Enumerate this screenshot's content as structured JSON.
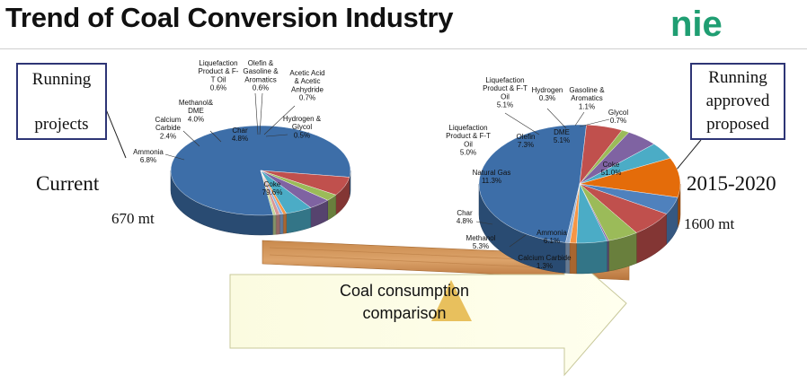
{
  "title": "Trend of Coal Conversion Industry",
  "logo": {
    "text": "nie",
    "color": "#1f9e72",
    "icon": "nie-logo"
  },
  "callouts": {
    "left": [
      "Running",
      "projects"
    ],
    "right": [
      "Running",
      "approved",
      "proposed"
    ]
  },
  "labels": {
    "current": "Current",
    "period": "2015-2020",
    "total_left": "670 mt",
    "total_right": "1600 mt"
  },
  "arrow_caption": [
    "Coal consumption",
    "comparison"
  ],
  "chart_data": [
    {
      "type": "pie",
      "title": "",
      "series": [
        {
          "name": "Coke",
          "value": 79.6,
          "label": [
            "Coke",
            "79.6%"
          ],
          "color": "#3d6ea8"
        },
        {
          "name": "Ammonia",
          "value": 6.8,
          "label": [
            "Ammonia",
            "6.8%"
          ],
          "color": "#c0504d"
        },
        {
          "name": "Calcium Carbide",
          "value": 2.4,
          "label": [
            "Calcium",
            "Carbide",
            "2.4%"
          ],
          "color": "#9bbb59"
        },
        {
          "name": "Methanol& DME",
          "value": 4.0,
          "label": [
            "Methanol&",
            "DME",
            "4.0%"
          ],
          "color": "#7f63a2"
        },
        {
          "name": "Char",
          "value": 4.8,
          "label": [
            "Char",
            "4.8%"
          ],
          "color": "#4bacc6"
        },
        {
          "name": "Liquefaction Product & F-T Oil",
          "value": 0.6,
          "label": [
            "Liquefaction",
            "Product & F-",
            "T Oil",
            "0.6%"
          ],
          "color": "#f79646"
        },
        {
          "name": "Olefin & Gasoline & Aromatics",
          "value": 0.6,
          "label": [
            "Olefin &",
            "Gasoline &",
            "Aromatics",
            "0.6%"
          ],
          "color": "#8db3e2"
        },
        {
          "name": "Acetic Acid & Acetic Anhydride",
          "value": 0.7,
          "label": [
            "Acetic Acid",
            "& Acetic",
            "Anhydride",
            "0.7%"
          ],
          "color": "#d99694"
        },
        {
          "name": "Hydrogen & Glycol",
          "value": 0.5,
          "label": [
            "Hydrogen &",
            "Glycol",
            "0.5%"
          ],
          "color": "#c3d69b"
        }
      ]
    },
    {
      "type": "pie",
      "title": "",
      "series": [
        {
          "name": "Coke",
          "value": 51.0,
          "label": [
            "Coke",
            "51.0%"
          ],
          "color": "#3d6ea8"
        },
        {
          "name": "Ammonia",
          "value": 6.1,
          "label": [
            "Ammonia",
            "6.1%"
          ],
          "color": "#c0504d"
        },
        {
          "name": "Calcium Carbide",
          "value": 1.3,
          "label": [
            "Calcium Carbide",
            "1.3%"
          ],
          "color": "#9bbb59"
        },
        {
          "name": "Methanol",
          "value": 5.3,
          "label": [
            "Methanol",
            "5.3%"
          ],
          "color": "#7f63a2"
        },
        {
          "name": "Char",
          "value": 4.8,
          "label": [
            "Char",
            "4.8%"
          ],
          "color": "#4bacc6"
        },
        {
          "name": "Natural Gas",
          "value": 11.3,
          "label": [
            "Natural Gas",
            "11.3%"
          ],
          "color": "#e46c0a"
        },
        {
          "name": "Liquefaction Product & F-T Oil",
          "value": 5.0,
          "label": [
            "Liquefaction",
            "Product & F-T",
            "Oil",
            "5.0%"
          ],
          "color": "#4f81bd"
        },
        {
          "name": "Olefin",
          "value": 7.3,
          "label": [
            "Olefin",
            "7.3%"
          ],
          "color": "#c0504d"
        },
        {
          "name": "Liquefaction Product & F-T Oil",
          "value": 5.1,
          "label": [
            "Liquefaction",
            "Product & F-T",
            "Oil",
            "5.1%"
          ],
          "color": "#9bbb59"
        },
        {
          "name": "Hydrogen",
          "value": 0.3,
          "label": [
            "Hydrogen",
            "0.3%"
          ],
          "color": "#8064a2"
        },
        {
          "name": "DME",
          "value": 5.1,
          "label": [
            "DME",
            "5.1%"
          ],
          "color": "#4bacc6"
        },
        {
          "name": "Gasoline & Aromatics",
          "value": 1.1,
          "label": [
            "Gasoline &",
            "Aromatics",
            "1.1%"
          ],
          "color": "#f79646"
        },
        {
          "name": "Glycol",
          "value": 0.7,
          "label": [
            "Glycol",
            "0.7%"
          ],
          "color": "#95b3d7"
        }
      ]
    }
  ]
}
